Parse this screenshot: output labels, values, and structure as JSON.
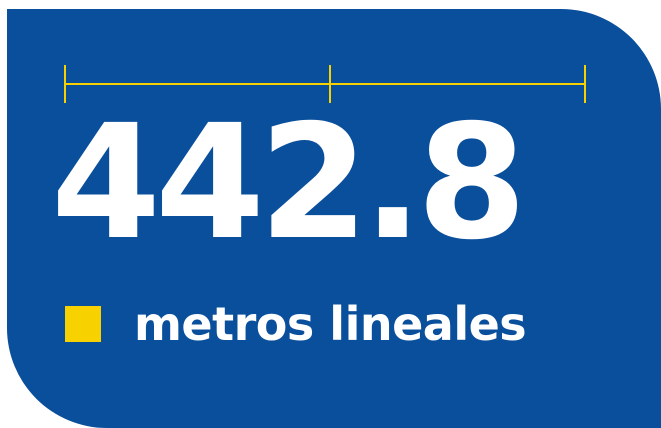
{
  "stat": {
    "value": "442.8",
    "unit": "metros lineales"
  },
  "colors": {
    "background": "#0a4f9c",
    "accent": "#f7d100",
    "text": "#ffffff"
  },
  "icons": {
    "ruler": "measure-ruler-icon",
    "marker": "yellow-square-icon"
  }
}
